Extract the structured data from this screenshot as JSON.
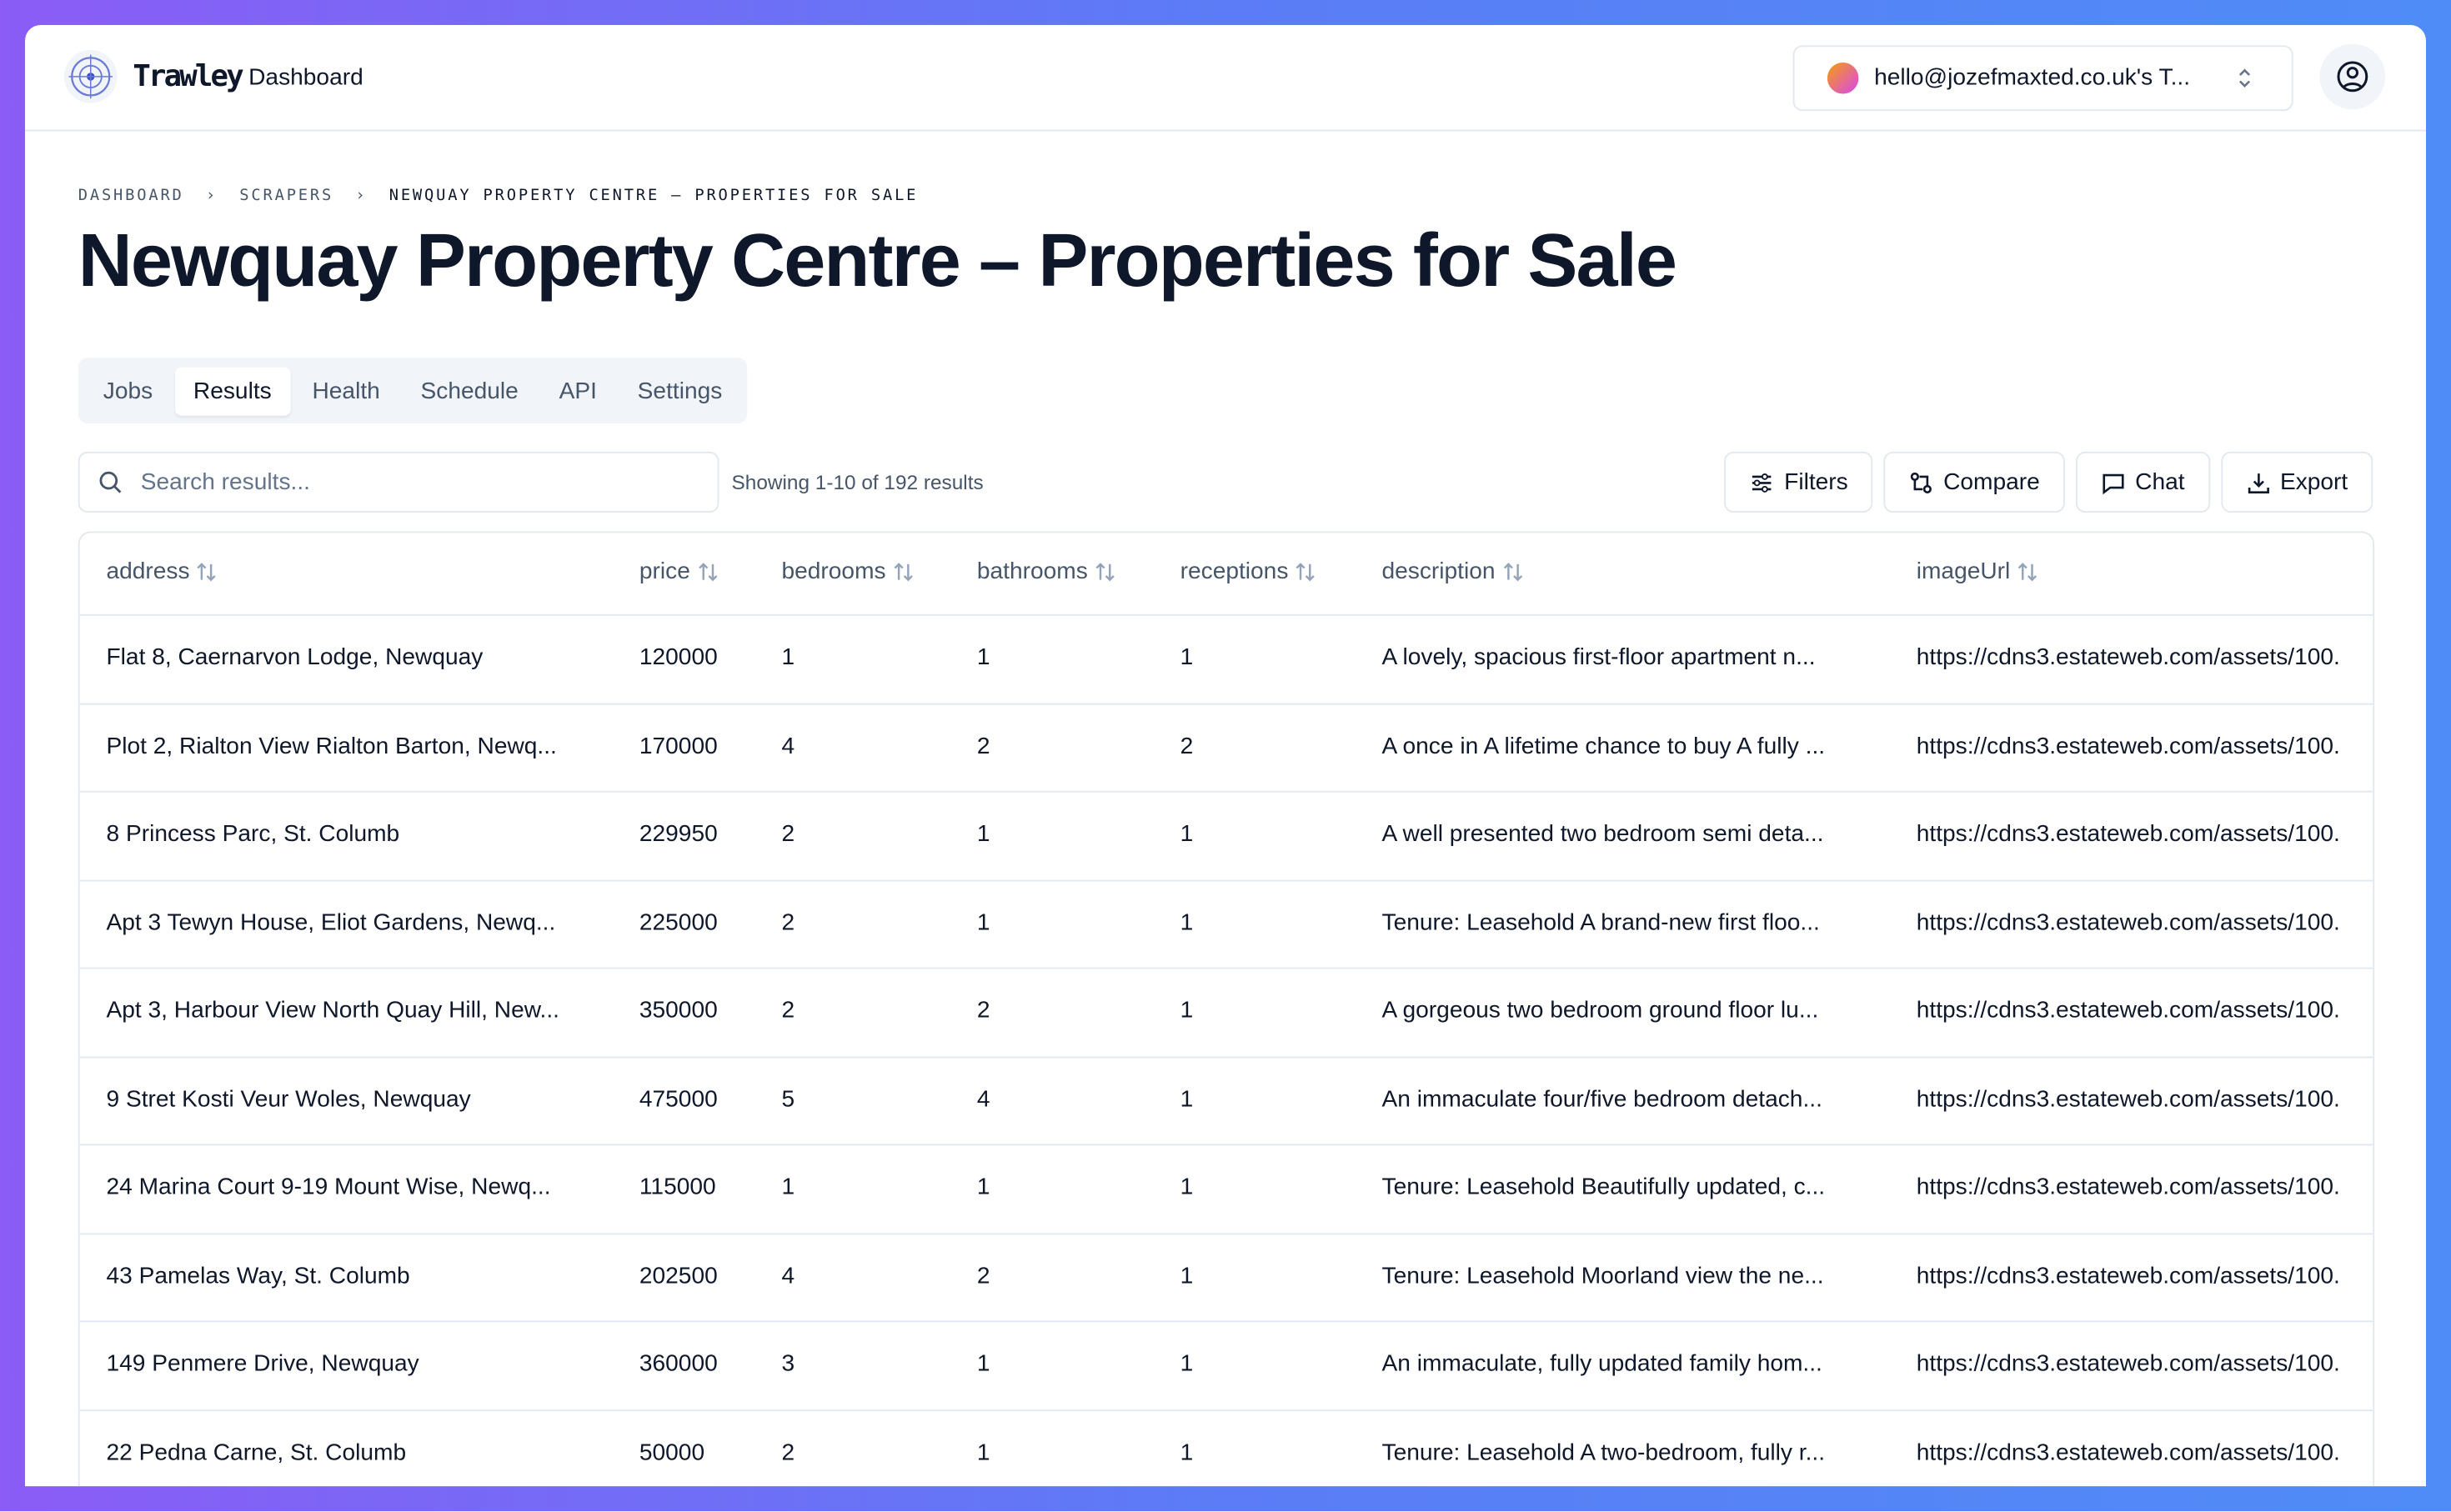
{
  "header": {
    "brand": "Trawley",
    "nav": "Dashboard",
    "account": "hello@jozefmaxted.co.uk's T..."
  },
  "breadcrumb": [
    "Dashboard",
    "Scrapers",
    "Newquay Property Centre – Properties for Sale"
  ],
  "title": "Newquay Property Centre – Properties for Sale",
  "tabs": [
    "Jobs",
    "Results",
    "Health",
    "Schedule",
    "API",
    "Settings"
  ],
  "active_tab": "Results",
  "search_placeholder": "Search results...",
  "result_count": "Showing 1-10 of 192 results",
  "buttons": [
    "Filters",
    "Compare",
    "Chat",
    "Export"
  ],
  "table": {
    "columns": [
      "address",
      "price",
      "bedrooms",
      "bathrooms",
      "receptions",
      "description",
      "imageUrl"
    ],
    "rows": [
      [
        "Flat 8, Caernarvon Lodge, Newquay",
        "120000",
        "1",
        "1",
        "1",
        "A lovely, spacious first-floor apartment n...",
        "https://cdns3.estateweb.com/assets/100."
      ],
      [
        "Plot 2, Rialton View Rialton Barton, Newq...",
        "170000",
        "4",
        "2",
        "2",
        "A once in A lifetime chance to buy A fully ...",
        "https://cdns3.estateweb.com/assets/100."
      ],
      [
        "8 Princess Parc, St. Columb",
        "229950",
        "2",
        "1",
        "1",
        "A well presented two bedroom semi deta...",
        "https://cdns3.estateweb.com/assets/100."
      ],
      [
        "Apt 3 Tewyn House, Eliot Gardens, Newq...",
        "225000",
        "2",
        "1",
        "1",
        "Tenure: Leasehold A brand-new first floo...",
        "https://cdns3.estateweb.com/assets/100."
      ],
      [
        "Apt 3, Harbour View North Quay Hill, New...",
        "350000",
        "2",
        "2",
        "1",
        "A gorgeous two bedroom ground floor lu...",
        "https://cdns3.estateweb.com/assets/100."
      ],
      [
        "9 Stret Kosti Veur Woles, Newquay",
        "475000",
        "5",
        "4",
        "1",
        "An immaculate four/five bedroom detach...",
        "https://cdns3.estateweb.com/assets/100."
      ],
      [
        "24 Marina Court 9-19 Mount Wise, Newq...",
        "115000",
        "1",
        "1",
        "1",
        "Tenure: Leasehold Beautifully updated, c...",
        "https://cdns3.estateweb.com/assets/100."
      ],
      [
        "43 Pamelas Way, St. Columb",
        "202500",
        "4",
        "2",
        "1",
        "Tenure: Leasehold Moorland view the ne...",
        "https://cdns3.estateweb.com/assets/100."
      ],
      [
        "149 Penmere Drive, Newquay",
        "360000",
        "3",
        "1",
        "1",
        "An immaculate, fully updated family hom...",
        "https://cdns3.estateweb.com/assets/100."
      ],
      [
        "22 Pedna Carne, St. Columb",
        "50000",
        "2",
        "1",
        "1",
        "Tenure: Leasehold A two-bedroom, fully r...",
        "https://cdns3.estateweb.com/assets/100."
      ]
    ]
  }
}
